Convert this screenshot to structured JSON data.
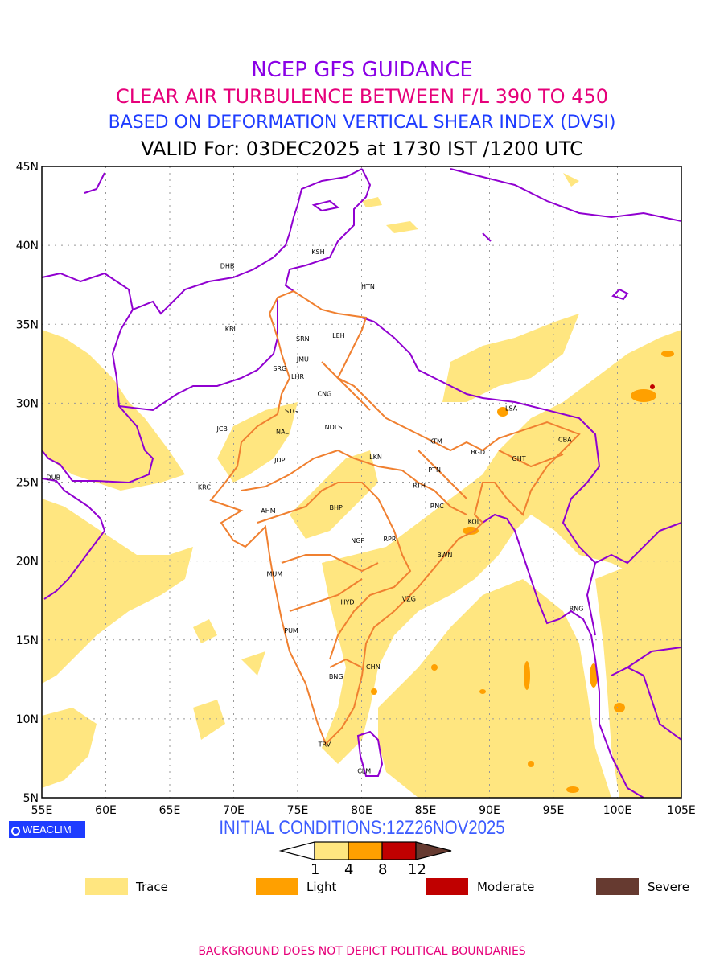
{
  "header": {
    "title": "NCEP GFS GUIDANCE",
    "subtitle": "CLEAR AIR TURBULENCE BETWEEN F/L 390 TO 450",
    "method": "BASED ON DEFORMATION VERTICAL SHEAR INDEX (DVSI)",
    "valid": "VALID For: 03DEC2025 at 1730 IST /1200 UTC"
  },
  "map": {
    "lon_range": [
      55,
      105
    ],
    "lat_range": [
      5,
      45
    ],
    "lon_ticks": [
      "55E",
      "60E",
      "65E",
      "70E",
      "75E",
      "80E",
      "85E",
      "90E",
      "95E",
      "100E",
      "105E"
    ],
    "lat_ticks": [
      "45N",
      "40N",
      "35N",
      "30N",
      "25N",
      "20N",
      "15N",
      "10N",
      "5N"
    ],
    "cities": [
      {
        "code": "KSH",
        "lon": 76.6,
        "lat": 39.6
      },
      {
        "code": "DHB",
        "lon": 69.5,
        "lat": 38.7
      },
      {
        "code": "HTN",
        "lon": 80.5,
        "lat": 37.4
      },
      {
        "code": "KBL",
        "lon": 69.8,
        "lat": 34.7
      },
      {
        "code": "SRN",
        "lon": 75.4,
        "lat": 34.1
      },
      {
        "code": "LEH",
        "lon": 78.2,
        "lat": 34.3
      },
      {
        "code": "JMU",
        "lon": 75.4,
        "lat": 32.8
      },
      {
        "code": "SRG",
        "lon": 73.6,
        "lat": 32.2
      },
      {
        "code": "LHR",
        "lon": 75.0,
        "lat": 31.7
      },
      {
        "code": "CNG",
        "lon": 77.1,
        "lat": 30.6
      },
      {
        "code": "STG",
        "lon": 74.5,
        "lat": 29.5
      },
      {
        "code": "LSA",
        "lon": 91.7,
        "lat": 29.7
      },
      {
        "code": "JCB",
        "lon": 69.1,
        "lat": 28.4
      },
      {
        "code": "NAL",
        "lon": 73.8,
        "lat": 28.2
      },
      {
        "code": "NDLS",
        "lon": 77.8,
        "lat": 28.5
      },
      {
        "code": "KTM",
        "lon": 85.8,
        "lat": 27.6
      },
      {
        "code": "CBA",
        "lon": 95.9,
        "lat": 27.7
      },
      {
        "code": "BGD",
        "lon": 89.1,
        "lat": 26.9
      },
      {
        "code": "LKN",
        "lon": 81.1,
        "lat": 26.6
      },
      {
        "code": "GHT",
        "lon": 92.3,
        "lat": 26.5
      },
      {
        "code": "JDP",
        "lon": 73.6,
        "lat": 26.4
      },
      {
        "code": "DUB",
        "lon": 55.9,
        "lat": 25.3
      },
      {
        "code": "PTN",
        "lon": 85.7,
        "lat": 25.8
      },
      {
        "code": "RTH",
        "lon": 84.5,
        "lat": 24.8
      },
      {
        "code": "KRC",
        "lon": 67.7,
        "lat": 24.7
      },
      {
        "code": "RNC",
        "lon": 85.9,
        "lat": 23.5
      },
      {
        "code": "BHP",
        "lon": 78.0,
        "lat": 23.4
      },
      {
        "code": "AHM",
        "lon": 72.7,
        "lat": 23.2
      },
      {
        "code": "KOL",
        "lon": 88.8,
        "lat": 22.5
      },
      {
        "code": "NGP",
        "lon": 79.7,
        "lat": 21.3
      },
      {
        "code": "RPR",
        "lon": 82.2,
        "lat": 21.4
      },
      {
        "code": "BWN",
        "lon": 86.5,
        "lat": 20.4
      },
      {
        "code": "MUM",
        "lon": 73.2,
        "lat": 19.2
      },
      {
        "code": "HYD",
        "lon": 78.9,
        "lat": 17.4
      },
      {
        "code": "VZG",
        "lon": 83.7,
        "lat": 17.6
      },
      {
        "code": "RNG",
        "lon": 96.8,
        "lat": 17.0
      },
      {
        "code": "PUM",
        "lon": 74.5,
        "lat": 15.6
      },
      {
        "code": "CHN",
        "lon": 80.9,
        "lat": 13.3
      },
      {
        "code": "BNG",
        "lon": 78.0,
        "lat": 12.7
      },
      {
        "code": "TRV",
        "lon": 77.1,
        "lat": 8.4
      },
      {
        "code": "CLM",
        "lon": 80.2,
        "lat": 6.7
      }
    ]
  },
  "logo": {
    "text": "WEACLIM"
  },
  "initial_conditions": "INITIAL  CONDITIONS:12Z26NOV2025",
  "colorbar": {
    "levels": [
      "1",
      "4",
      "8",
      "12"
    ],
    "colors": [
      "#ffe680",
      "#ffa000",
      "#c00000",
      "#663a30"
    ]
  },
  "legend": [
    {
      "label": "Trace",
      "color": "#ffe680"
    },
    {
      "label": "Light",
      "color": "#ffa000"
    },
    {
      "label": "Moderate",
      "color": "#c00000"
    },
    {
      "label": "Severe",
      "color": "#663a30"
    }
  ],
  "footer": "BACKGROUND DOES NOT DEPICT POLITICAL BOUNDARIES"
}
